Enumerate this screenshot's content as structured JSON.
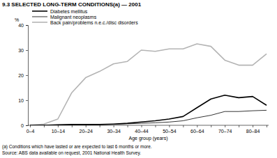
{
  "chart_data": {
    "type": "line",
    "title": "9.3 SELECTED LONG-TERM CONDITIONS(a) — 2001",
    "ylabel": "%",
    "xlabel": "Age group (years)",
    "footnote": "(a) Conditions which have lasted or are expected to last 6 months or more.",
    "source": "Source: ABS data available on request, 2001 National Health Survey.",
    "categories": [
      "0–4",
      null,
      "10–14",
      null,
      "20–24",
      null,
      "30–34",
      null,
      "40–44",
      null,
      "50–54",
      null,
      "60–64",
      null,
      "70–74",
      null,
      "80–84",
      null
    ],
    "series": [
      {
        "name": "Diabetes mellitus",
        "color": "#000000",
        "line_style": "thick",
        "values": [
          0,
          0,
          0.2,
          0.3,
          0.3,
          0.3,
          0.5,
          0.8,
          1.3,
          1.8,
          2.5,
          3.5,
          7,
          10.5,
          12,
          11,
          11.5,
          8
        ]
      },
      {
        "name": "Malignant neoplasms",
        "color": "#000000",
        "line_style": "thin",
        "values": [
          0,
          0,
          0.1,
          0.2,
          0.2,
          0.3,
          0.4,
          0.6,
          0.8,
          1,
          1.3,
          1.8,
          3,
          4,
          5.5,
          5.5,
          5.8,
          6
        ]
      },
      {
        "name": "Back pain/problems n.e.c./disc disorders",
        "color": "#b4b4b4",
        "line_style": "thick",
        "values": [
          0,
          0.5,
          2.5,
          13,
          19,
          21.5,
          24.5,
          25.5,
          30,
          29.5,
          30.5,
          30.5,
          32.5,
          31.5,
          26,
          24,
          24,
          28.5
        ]
      }
    ],
    "ylim": [
      0,
      40
    ],
    "yticks": [
      0,
      10,
      20,
      30,
      40
    ],
    "grid": false,
    "legend": "top-left"
  }
}
